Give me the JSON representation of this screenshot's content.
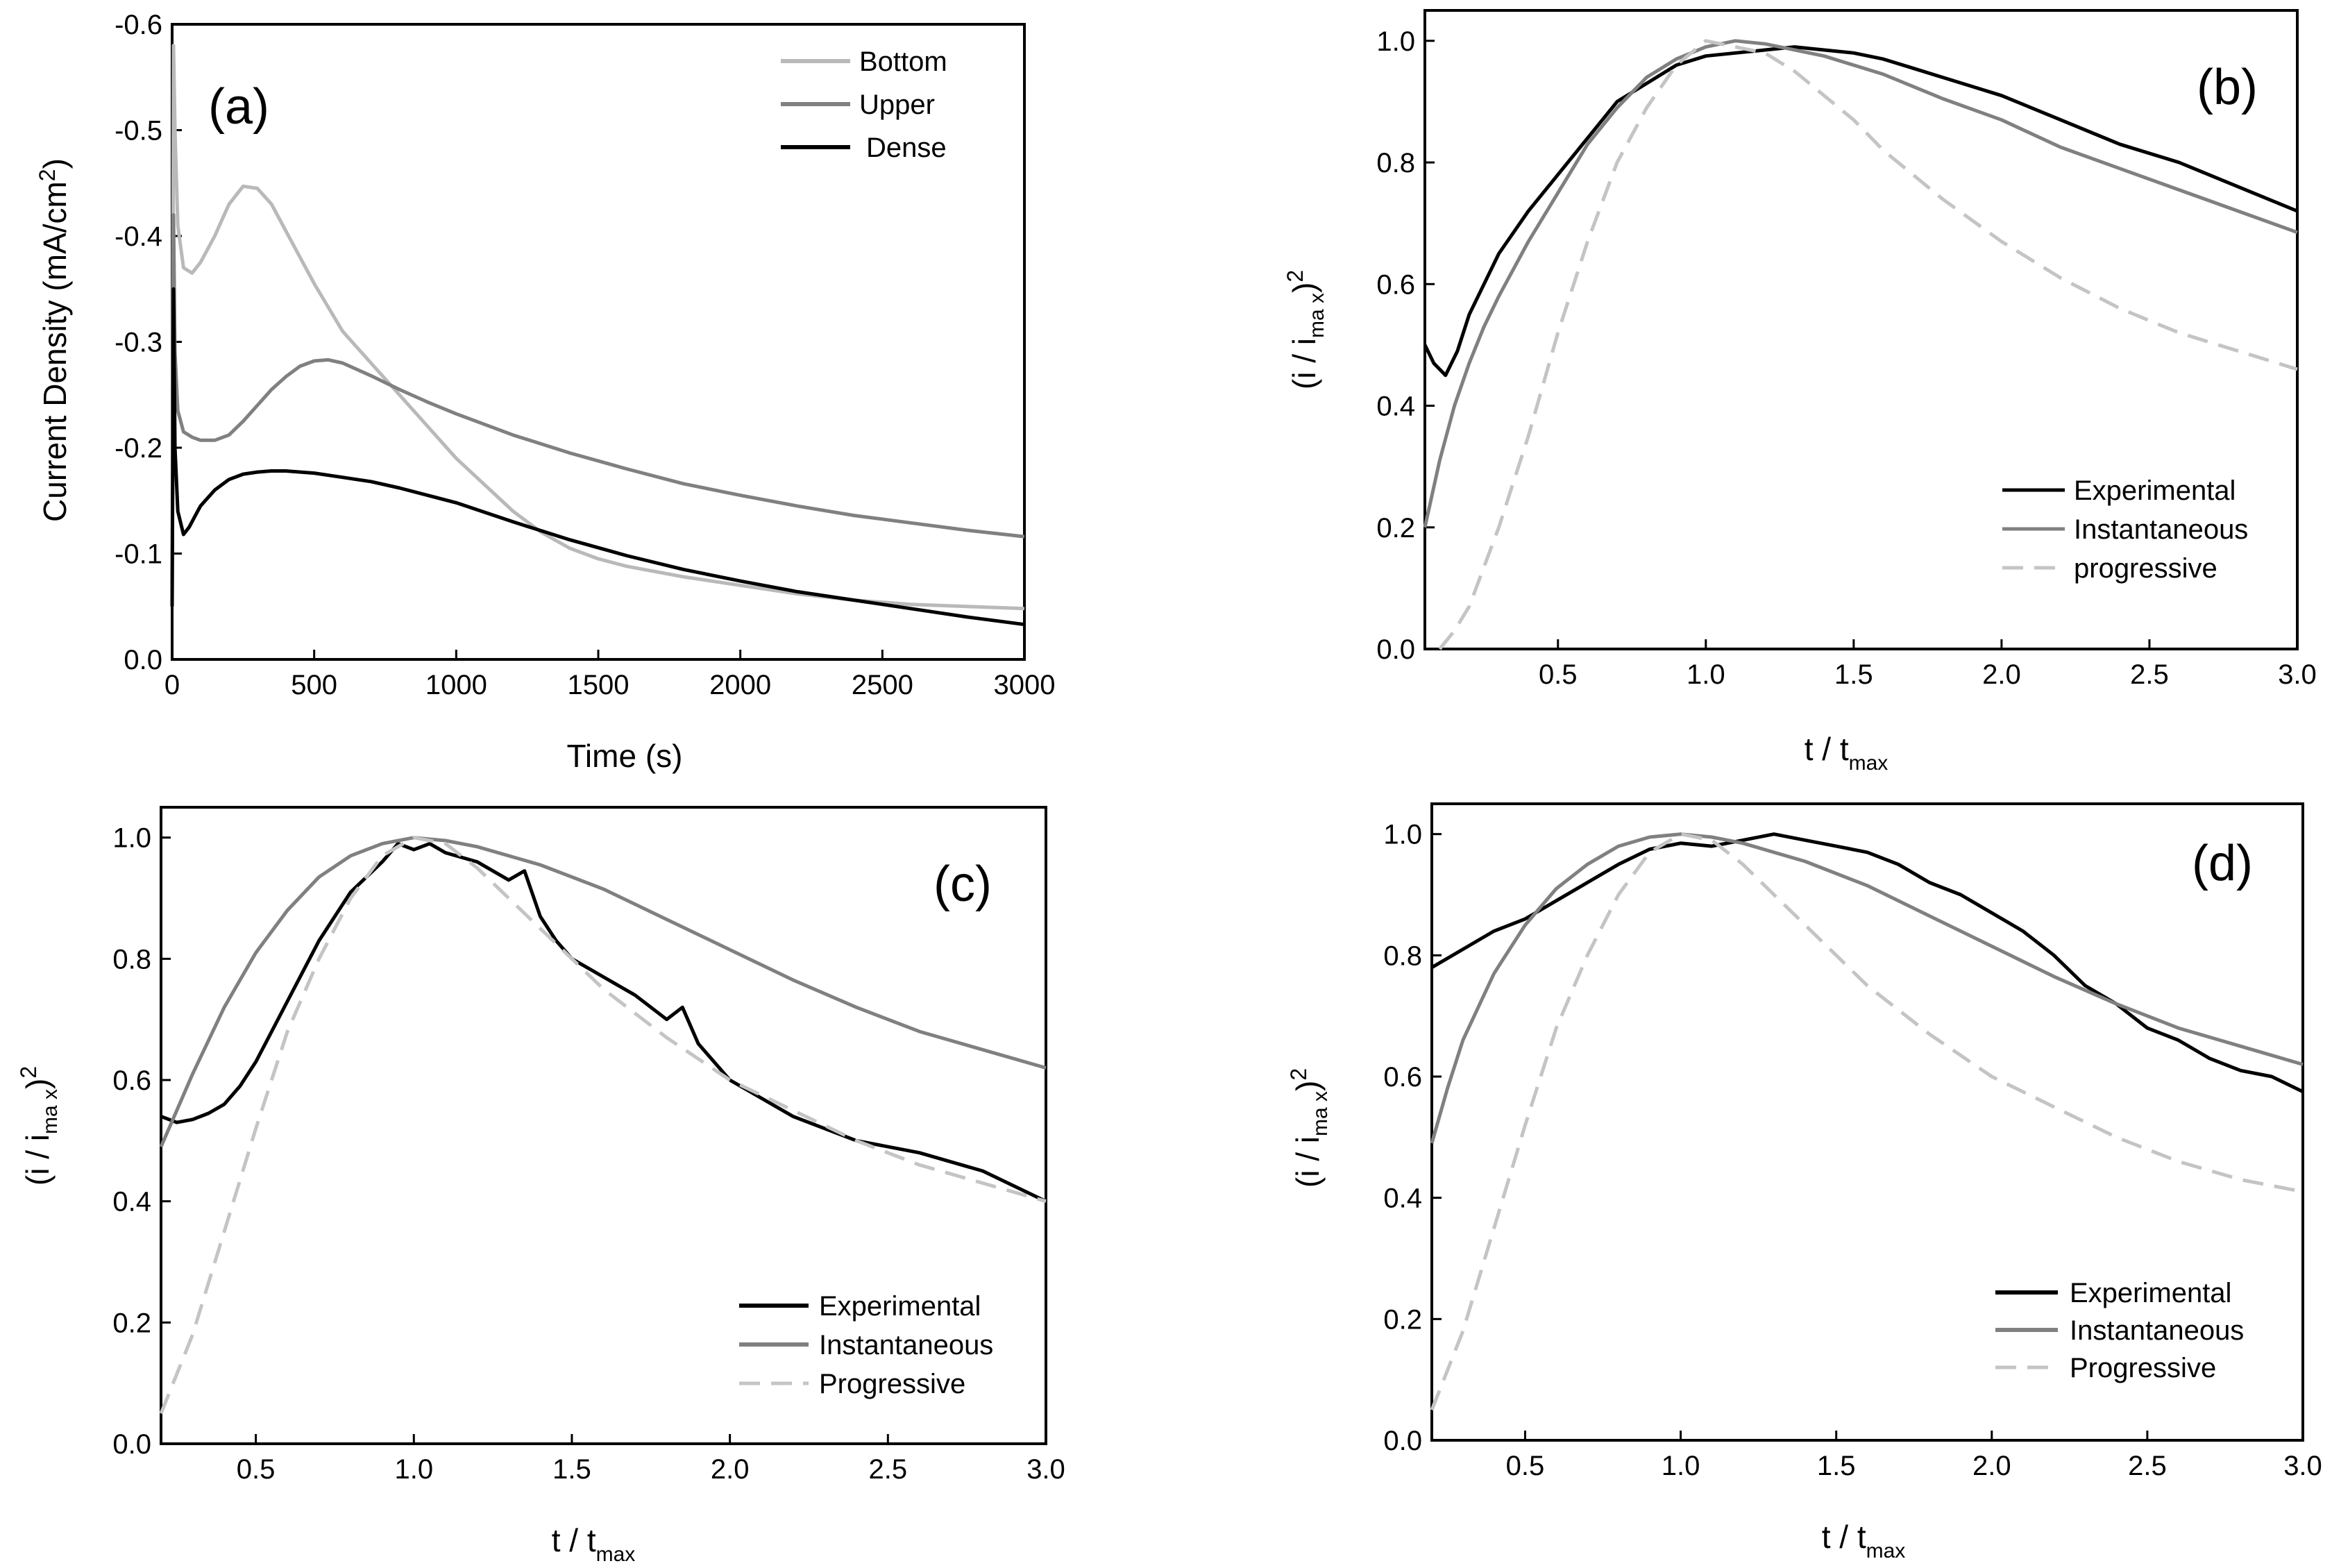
{
  "chart_data": [
    {
      "type": "line",
      "panel_label": "(a)",
      "xlabel": "Time (s)",
      "ylabel": "Current Density (mA/cm2)",
      "ylabel_main": "Current Density (mA/cm",
      "ylabel_sup": "2",
      "ylabel_end": ")",
      "xlim": [
        0,
        3000
      ],
      "ylim": [
        0,
        -0.6
      ],
      "x_ticks": [
        0,
        500,
        1000,
        1500,
        2000,
        2500,
        3000
      ],
      "x_tick_labels": [
        "0",
        "500",
        "1000",
        "1500",
        "2000",
        "2500",
        "3000"
      ],
      "y_ticks": [
        0,
        -0.1,
        -0.2,
        -0.3,
        -0.4,
        -0.5,
        -0.6
      ],
      "y_tick_labels": [
        "0.0",
        "-0.1",
        "-0.2",
        "-0.3",
        "-0.4",
        "-0.5",
        "-0.6"
      ],
      "legend_position": "top-right",
      "series": [
        {
          "name": "Bottom",
          "color": "#b9b9b9",
          "dash": "solid",
          "x": [
            0,
            5,
            10,
            20,
            40,
            70,
            100,
            150,
            200,
            250,
            300,
            350,
            400,
            450,
            500,
            600,
            700,
            800,
            900,
            1000,
            1100,
            1200,
            1300,
            1400,
            1500,
            1600,
            1800,
            2000,
            2200,
            2400,
            2600,
            2800,
            3000
          ],
          "y": [
            -0.05,
            -0.58,
            -0.5,
            -0.41,
            -0.37,
            -0.365,
            -0.375,
            -0.4,
            -0.43,
            -0.447,
            -0.445,
            -0.43,
            -0.405,
            -0.38,
            -0.355,
            -0.31,
            -0.28,
            -0.25,
            -0.22,
            -0.19,
            -0.165,
            -0.14,
            -0.12,
            -0.105,
            -0.095,
            -0.088,
            -0.078,
            -0.07,
            -0.062,
            -0.056,
            -0.052,
            -0.05,
            -0.048
          ]
        },
        {
          "name": "Upper",
          "color": "#808080",
          "dash": "solid",
          "x": [
            0,
            5,
            10,
            20,
            40,
            70,
            100,
            150,
            200,
            250,
            300,
            350,
            400,
            450,
            500,
            550,
            600,
            700,
            800,
            900,
            1000,
            1200,
            1400,
            1600,
            1800,
            2000,
            2200,
            2400,
            2600,
            2800,
            3000
          ],
          "y": [
            -0.05,
            -0.42,
            -0.29,
            -0.235,
            -0.215,
            -0.21,
            -0.207,
            -0.207,
            -0.212,
            -0.225,
            -0.24,
            -0.255,
            -0.267,
            -0.277,
            -0.282,
            -0.283,
            -0.28,
            -0.268,
            -0.255,
            -0.243,
            -0.232,
            -0.212,
            -0.195,
            -0.18,
            -0.166,
            -0.155,
            -0.145,
            -0.136,
            -0.129,
            -0.122,
            -0.116
          ]
        },
        {
          "name": "Dense",
          "color": "#000000",
          "dash": "solid",
          "x": [
            0,
            5,
            10,
            20,
            40,
            60,
            80,
            100,
            150,
            200,
            250,
            300,
            350,
            400,
            500,
            600,
            700,
            800,
            1000,
            1200,
            1400,
            1600,
            1800,
            2000,
            2200,
            2400,
            2600,
            2800,
            3000
          ],
          "y": [
            -0.05,
            -0.35,
            -0.2,
            -0.14,
            -0.118,
            -0.125,
            -0.135,
            -0.145,
            -0.16,
            -0.17,
            -0.175,
            -0.177,
            -0.178,
            -0.178,
            -0.176,
            -0.172,
            -0.168,
            -0.162,
            -0.148,
            -0.13,
            -0.113,
            -0.098,
            -0.085,
            -0.074,
            -0.064,
            -0.056,
            -0.048,
            -0.04,
            -0.033
          ]
        }
      ]
    },
    {
      "type": "line",
      "panel_label": "(b)",
      "xlabel_main": "t / t",
      "xlabel_sub": "max",
      "ylabel_main": "(i / i",
      "ylabel_sub": "ma x",
      "ylabel_end": ")",
      "ylabel_sup": "2",
      "xlim": [
        0.05,
        3.0
      ],
      "ylim": [
        0,
        1.05
      ],
      "x_ticks": [
        0.5,
        1.0,
        1.5,
        2.0,
        2.5,
        3.0
      ],
      "x_tick_labels": [
        "0.5",
        "1.0",
        "1.5",
        "2.0",
        "2.5",
        "3.0"
      ],
      "y_ticks": [
        0,
        0.2,
        0.4,
        0.6,
        0.8,
        1.0
      ],
      "y_tick_labels": [
        "0.0",
        "0.2",
        "0.4",
        "0.6",
        "0.8",
        "1.0"
      ],
      "legend_position": "bottom-right",
      "series": [
        {
          "name": "Experimental",
          "color": "#000000",
          "dash": "solid",
          "x": [
            0.05,
            0.08,
            0.12,
            0.16,
            0.2,
            0.25,
            0.3,
            0.4,
            0.5,
            0.6,
            0.7,
            0.8,
            0.9,
            1.0,
            1.1,
            1.2,
            1.3,
            1.4,
            1.5,
            1.6,
            1.7,
            1.8,
            1.9,
            2.0,
            2.2,
            2.4,
            2.6,
            2.8,
            3.0
          ],
          "y": [
            0.5,
            0.47,
            0.45,
            0.49,
            0.55,
            0.6,
            0.65,
            0.72,
            0.78,
            0.84,
            0.9,
            0.93,
            0.96,
            0.975,
            0.98,
            0.985,
            0.99,
            0.985,
            0.98,
            0.97,
            0.955,
            0.94,
            0.925,
            0.91,
            0.87,
            0.83,
            0.8,
            0.76,
            0.72
          ]
        },
        {
          "name": "Instantaneous",
          "color": "#808080",
          "dash": "solid",
          "x": [
            0.05,
            0.1,
            0.15,
            0.2,
            0.25,
            0.3,
            0.4,
            0.5,
            0.6,
            0.7,
            0.8,
            0.9,
            1.0,
            1.1,
            1.2,
            1.4,
            1.6,
            1.8,
            2.0,
            2.2,
            2.4,
            2.6,
            2.8,
            3.0
          ],
          "y": [
            0.2,
            0.31,
            0.4,
            0.47,
            0.53,
            0.58,
            0.67,
            0.75,
            0.83,
            0.89,
            0.94,
            0.97,
            0.99,
            1.0,
            0.995,
            0.975,
            0.945,
            0.905,
            0.87,
            0.825,
            0.79,
            0.755,
            0.72,
            0.685
          ]
        },
        {
          "name": "progressive",
          "color": "#c4c4c4",
          "dash": "dashed",
          "x": [
            0.1,
            0.15,
            0.2,
            0.3,
            0.4,
            0.5,
            0.6,
            0.7,
            0.8,
            0.9,
            1.0,
            1.1,
            1.2,
            1.3,
            1.4,
            1.5,
            1.6,
            1.8,
            2.0,
            2.2,
            2.4,
            2.6,
            2.8,
            3.0
          ],
          "y": [
            0.0,
            0.03,
            0.07,
            0.2,
            0.35,
            0.52,
            0.67,
            0.8,
            0.89,
            0.96,
            1.0,
            0.99,
            0.98,
            0.95,
            0.91,
            0.87,
            0.82,
            0.74,
            0.67,
            0.61,
            0.56,
            0.52,
            0.49,
            0.46
          ]
        }
      ],
      "legend": [
        "Experimental",
        "Instantaneous",
        "progressive"
      ]
    },
    {
      "type": "line",
      "panel_label": "(c)",
      "xlabel_main": "t / t",
      "xlabel_sub": "max",
      "ylabel_main": "(i / i",
      "ylabel_sub": "ma x",
      "ylabel_end": ")",
      "ylabel_sup": "2",
      "xlim": [
        0.2,
        3.0
      ],
      "ylim": [
        0,
        1.05
      ],
      "x_ticks": [
        0.5,
        1.0,
        1.5,
        2.0,
        2.5,
        3.0
      ],
      "x_tick_labels": [
        "0.5",
        "1.0",
        "1.5",
        "2.0",
        "2.5",
        "3.0"
      ],
      "y_ticks": [
        0,
        0.2,
        0.4,
        0.6,
        0.8,
        1.0
      ],
      "y_tick_labels": [
        "0.0",
        "0.2",
        "0.4",
        "0.6",
        "0.8",
        "1.0"
      ],
      "legend_position": "bottom-right",
      "series": [
        {
          "name": "Experimental",
          "color": "#000000",
          "dash": "solid",
          "x": [
            0.2,
            0.25,
            0.3,
            0.35,
            0.4,
            0.45,
            0.5,
            0.55,
            0.6,
            0.7,
            0.8,
            0.9,
            0.95,
            1.0,
            1.05,
            1.1,
            1.2,
            1.3,
            1.35,
            1.4,
            1.45,
            1.5,
            1.6,
            1.7,
            1.8,
            1.85,
            1.9,
            2.0,
            2.2,
            2.4,
            2.6,
            2.8,
            3.0
          ],
          "y": [
            0.54,
            0.53,
            0.535,
            0.545,
            0.56,
            0.59,
            0.63,
            0.68,
            0.73,
            0.83,
            0.91,
            0.96,
            0.99,
            0.98,
            0.99,
            0.975,
            0.96,
            0.93,
            0.945,
            0.87,
            0.83,
            0.8,
            0.77,
            0.74,
            0.7,
            0.72,
            0.66,
            0.6,
            0.54,
            0.5,
            0.48,
            0.45,
            0.4
          ]
        },
        {
          "name": "Instantaneous",
          "color": "#808080",
          "dash": "solid",
          "x": [
            0.2,
            0.3,
            0.4,
            0.5,
            0.6,
            0.7,
            0.8,
            0.9,
            1.0,
            1.1,
            1.2,
            1.4,
            1.6,
            1.8,
            2.0,
            2.2,
            2.4,
            2.6,
            2.8,
            3.0
          ],
          "y": [
            0.49,
            0.61,
            0.72,
            0.81,
            0.88,
            0.935,
            0.97,
            0.99,
            1.0,
            0.995,
            0.985,
            0.955,
            0.915,
            0.865,
            0.815,
            0.765,
            0.72,
            0.68,
            0.65,
            0.62
          ]
        },
        {
          "name": "Progressive",
          "color": "#c4c4c4",
          "dash": "dashed",
          "x": [
            0.2,
            0.3,
            0.4,
            0.5,
            0.6,
            0.7,
            0.8,
            0.9,
            1.0,
            1.1,
            1.2,
            1.3,
            1.4,
            1.5,
            1.6,
            1.8,
            2.0,
            2.2,
            2.4,
            2.6,
            2.8,
            3.0
          ],
          "y": [
            0.05,
            0.18,
            0.35,
            0.52,
            0.68,
            0.8,
            0.9,
            0.97,
            1.0,
            0.99,
            0.95,
            0.9,
            0.85,
            0.8,
            0.75,
            0.67,
            0.6,
            0.55,
            0.5,
            0.46,
            0.43,
            0.4
          ]
        }
      ],
      "legend": [
        "Experimental",
        "Instantaneous",
        "Progressive"
      ]
    },
    {
      "type": "line",
      "panel_label": "(d)",
      "xlabel_main": "t / t",
      "xlabel_sub": "max",
      "ylabel_main": "(i / i",
      "ylabel_sub": "ma x",
      "ylabel_end": ")",
      "ylabel_sup": "2",
      "xlim": [
        0.2,
        3.0
      ],
      "ylim": [
        0,
        1.05
      ],
      "x_ticks": [
        0.5,
        1.0,
        1.5,
        2.0,
        2.5,
        3.0
      ],
      "x_tick_labels": [
        "0.5",
        "1.0",
        "1.5",
        "2.0",
        "2.5",
        "3.0"
      ],
      "y_ticks": [
        0,
        0.2,
        0.4,
        0.6,
        0.8,
        1.0
      ],
      "y_tick_labels": [
        "0.0",
        "0.2",
        "0.4",
        "0.6",
        "0.8",
        "1.0"
      ],
      "legend_position": "bottom-right",
      "series": [
        {
          "name": "Experimental",
          "color": "#000000",
          "dash": "solid",
          "x": [
            0.2,
            0.3,
            0.4,
            0.5,
            0.6,
            0.7,
            0.8,
            0.9,
            1.0,
            1.1,
            1.2,
            1.3,
            1.4,
            1.5,
            1.6,
            1.7,
            1.8,
            1.9,
            2.0,
            2.1,
            2.2,
            2.3,
            2.4,
            2.5,
            2.6,
            2.7,
            2.8,
            2.9,
            3.0
          ],
          "y": [
            0.78,
            0.81,
            0.84,
            0.86,
            0.89,
            0.92,
            0.95,
            0.975,
            0.985,
            0.98,
            0.99,
            1.0,
            0.99,
            0.98,
            0.97,
            0.95,
            0.92,
            0.9,
            0.87,
            0.84,
            0.8,
            0.75,
            0.72,
            0.68,
            0.66,
            0.63,
            0.61,
            0.6,
            0.575
          ]
        },
        {
          "name": "Instantaneous",
          "color": "#808080",
          "dash": "solid",
          "x": [
            0.2,
            0.25,
            0.3,
            0.4,
            0.5,
            0.6,
            0.7,
            0.8,
            0.9,
            1.0,
            1.1,
            1.2,
            1.4,
            1.6,
            1.8,
            2.0,
            2.2,
            2.4,
            2.6,
            2.8,
            3.0
          ],
          "y": [
            0.49,
            0.58,
            0.66,
            0.77,
            0.85,
            0.91,
            0.95,
            0.98,
            0.995,
            1.0,
            0.995,
            0.985,
            0.955,
            0.915,
            0.865,
            0.815,
            0.765,
            0.72,
            0.68,
            0.65,
            0.62
          ]
        },
        {
          "name": "Progressive",
          "color": "#c4c4c4",
          "dash": "dashed",
          "x": [
            0.2,
            0.3,
            0.4,
            0.5,
            0.6,
            0.7,
            0.8,
            0.9,
            1.0,
            1.1,
            1.2,
            1.3,
            1.4,
            1.5,
            1.6,
            1.8,
            2.0,
            2.2,
            2.4,
            2.6,
            2.8,
            3.0
          ],
          "y": [
            0.05,
            0.18,
            0.35,
            0.52,
            0.68,
            0.8,
            0.9,
            0.97,
            1.0,
            0.99,
            0.95,
            0.9,
            0.85,
            0.8,
            0.75,
            0.67,
            0.6,
            0.55,
            0.5,
            0.46,
            0.43,
            0.41
          ]
        }
      ],
      "legend": [
        "Experimental",
        "Instantaneous",
        "Progressive"
      ]
    }
  ]
}
